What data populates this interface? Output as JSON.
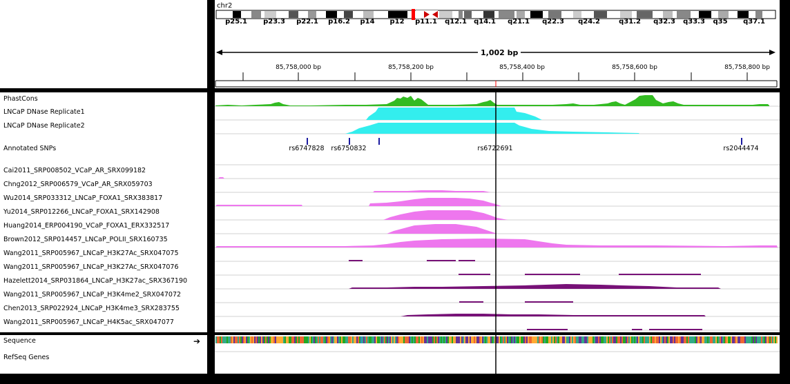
{
  "chromosome": "chr2",
  "ideogram_bands": [
    "p25.1",
    "p23.3",
    "p22.1",
    "p16.2",
    "p14",
    "p12",
    "p11.1",
    "q12.1",
    "q14.1",
    "q21.1",
    "q22.3",
    "q24.2",
    "q31.2",
    "q32.3",
    "q33.3",
    "q35",
    "q37.1"
  ],
  "span_label": "1,002 bp",
  "ruler_ticks": [
    "85,758,000 bp",
    "85,758,200 bp",
    "85,758,400 bp",
    "85,758,600 bp",
    "85,758,800 bp"
  ],
  "tracks": {
    "phastcons": "PhastCons",
    "dnase1": "LNCaP DNase Replicate1",
    "dnase2": "LNCaP DNase Replicate2",
    "snps": "Annotated SNPs",
    "t1": "Cai2011_SRP008502_VCaP_AR_SRX099182",
    "t2": "Chng2012_SRP006579_VCaP_AR_SRX059703",
    "t3": "Wu2014_SRP033312_LNCaP_FOXA1_SRX383817",
    "t4": "Yu2014_SRP012266_LNCaP_FOXA1_SRX142908",
    "t5": "Huang2014_ERP004190_VCaP_FOXA1_ERX332517",
    "t6": "Brown2012_SRP014457_LNCaP_POLII_SRX160735",
    "t7": "Wang2011_SRP005967_LNCaP_H3K27Ac_SRX047075",
    "t8": "Wang2011_SRP005967_LNCaP_H3K27Ac_SRX047076",
    "t9": "Hazelett2014_SRP031864_LNCaP_H3K27ac_SRX367190",
    "t10": "Wang2011_SRP005967_LNCaP_H3K4me2_SRX047072",
    "t11": "Chen2013_SRP022924_LNCaP_H3K4me3_SRX283755",
    "t12": "Wang2011_SRP005967_LNCaP_H4K5ac_SRX047077",
    "sequence": "Sequence",
    "refseq": "RefSeq Genes"
  },
  "snp_ids": [
    "rs6747828",
    "rs6750832",
    "rs6722691",
    "rs2044474"
  ],
  "colors": {
    "phastcons": "#33bb22",
    "dnase": "#33eeee",
    "chipseq": "#ee77ee",
    "histone": "#771177",
    "centerline": "#000000",
    "snp": "#1a1aa0"
  }
}
